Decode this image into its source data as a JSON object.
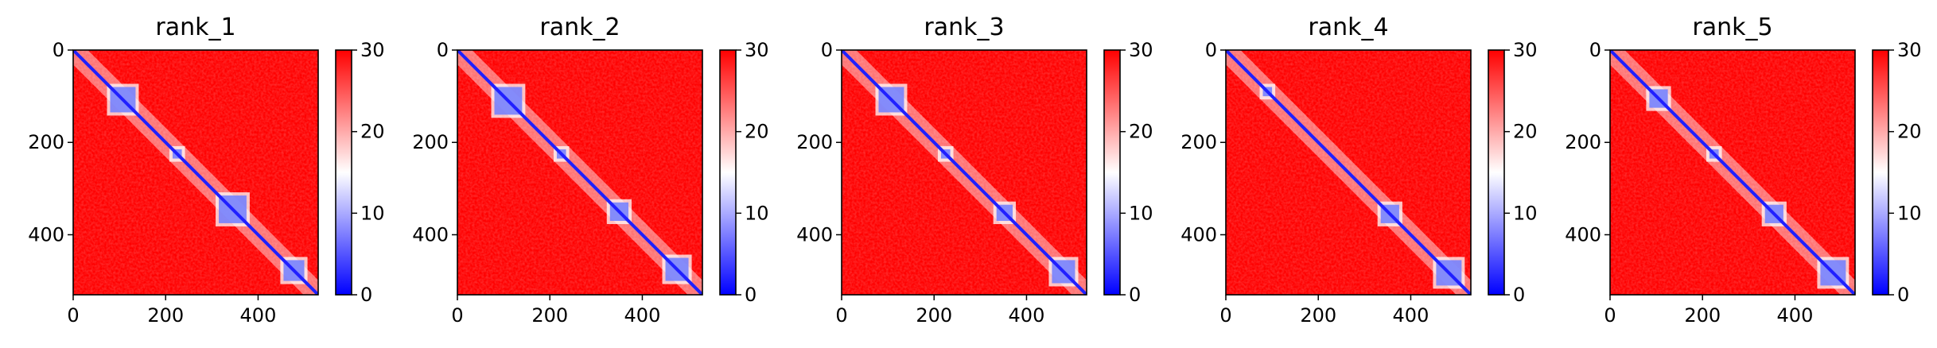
{
  "chart_data": [
    {
      "type": "heatmap",
      "title": "rank_1",
      "matrix_size": 530,
      "xticks": [
        0,
        200,
        400
      ],
      "yticks": [
        0,
        200,
        400
      ],
      "colorbar": {
        "min": 0,
        "max": 30,
        "ticks": [
          0,
          10,
          20,
          30
        ],
        "colors": [
          "#0000ff",
          "#ffffff",
          "#ff0000"
        ]
      },
      "domains": [
        [
          80,
          135
        ],
        [
          215,
          235
        ],
        [
          315,
          375
        ],
        [
          455,
          500
        ]
      ]
    },
    {
      "type": "heatmap",
      "title": "rank_2",
      "matrix_size": 530,
      "xticks": [
        0,
        200,
        400
      ],
      "yticks": [
        0,
        200,
        400
      ],
      "colorbar": {
        "min": 0,
        "max": 30,
        "ticks": [
          0,
          10,
          20,
          30
        ],
        "colors": [
          "#0000ff",
          "#ffffff",
          "#ff0000"
        ]
      },
      "domains": [
        [
          80,
          140
        ],
        [
          215,
          235
        ],
        [
          330,
          370
        ],
        [
          450,
          500
        ]
      ]
    },
    {
      "type": "heatmap",
      "title": "rank_3",
      "matrix_size": 530,
      "xticks": [
        0,
        200,
        400
      ],
      "yticks": [
        0,
        200,
        400
      ],
      "colorbar": {
        "min": 0,
        "max": 30,
        "ticks": [
          0,
          10,
          20,
          30
        ],
        "colors": [
          "#0000ff",
          "#ffffff",
          "#ff0000"
        ]
      },
      "domains": [
        [
          80,
          135
        ],
        [
          215,
          235
        ],
        [
          335,
          370
        ],
        [
          455,
          505
        ]
      ]
    },
    {
      "type": "heatmap",
      "title": "rank_4",
      "matrix_size": 530,
      "xticks": [
        0,
        200,
        400
      ],
      "yticks": [
        0,
        200,
        400
      ],
      "colorbar": {
        "min": 0,
        "max": 30,
        "ticks": [
          0,
          10,
          20,
          30
        ],
        "colors": [
          "#0000ff",
          "#ffffff",
          "#ff0000"
        ]
      },
      "domains": [
        [
          80,
          100
        ],
        [
          335,
          375
        ],
        [
          455,
          510
        ]
      ]
    },
    {
      "type": "heatmap",
      "title": "rank_5",
      "matrix_size": 530,
      "xticks": [
        0,
        200,
        400
      ],
      "yticks": [
        0,
        200,
        400
      ],
      "colorbar": {
        "min": 0,
        "max": 30,
        "ticks": [
          0,
          10,
          20,
          30
        ],
        "colors": [
          "#0000ff",
          "#ffffff",
          "#ff0000"
        ]
      },
      "domains": [
        [
          85,
          125
        ],
        [
          215,
          235
        ],
        [
          335,
          375
        ],
        [
          455,
          510
        ]
      ]
    }
  ]
}
